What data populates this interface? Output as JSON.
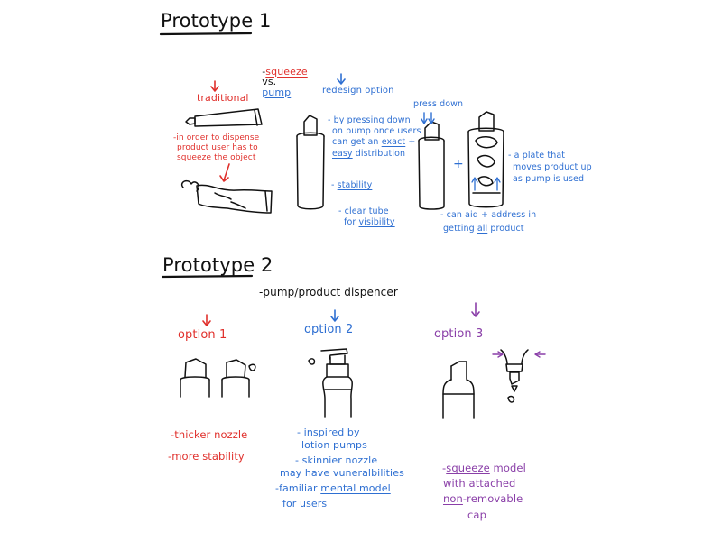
{
  "colors": {
    "ink": "#111111",
    "red": "#e0302c",
    "blue": "#2e6fd2",
    "purple": "#8a3fa8"
  },
  "prototype1": {
    "title": "Prototype 1",
    "topic_prefix": "-",
    "topic_squeeze": "squeeze",
    "topic_vs": "vs.",
    "topic_pump": "pump",
    "traditional": "traditional",
    "red_note_line1": "-in order to dispense",
    "red_note_line2": "product user has to",
    "red_note_line3": "squeeze the object",
    "redesign": "redesign option",
    "press_note_line1": "- by pressing down",
    "press_note_line2": "on pump once users",
    "press_note_line3a": "can get an",
    "press_note_exact": "exact",
    "press_note_line3b": " +",
    "press_note_easy": "easy",
    "press_note_line4b": " distribution",
    "stability_dash": "- ",
    "stability": "stability",
    "clear_line1": "- clear tube",
    "clear_line2a": "for ",
    "clear_visibility": "visibility",
    "press_down": "press down",
    "plus": "+",
    "plate_line1": "- a plate that",
    "plate_line2": "moves product up",
    "plate_line3": "as pump is used",
    "aid_line1": "- can aid + address in",
    "aid_line2a": "getting ",
    "aid_all": "all",
    "aid_line2b": " product"
  },
  "prototype2": {
    "title": "Prototype 2",
    "subtitle": "-pump/product dispencer",
    "option1": {
      "label": "option 1",
      "note1": "-thicker nozzle",
      "note2": "-more stability"
    },
    "option2": {
      "label": "option 2",
      "note1_line1": "- inspired by",
      "note1_line2": "lotion pumps",
      "note2_line1": "- skinnier nozzle",
      "note2_line2": "may have vuneralbilities",
      "note3_line1a": "-familiar ",
      "note3_mental": "mental model",
      "note3_line2": "for users"
    },
    "option3": {
      "label": "option 3",
      "line1_squeeze": "squeeze",
      "line1b": " model",
      "line2": "with attached",
      "line3_non": "non",
      "line3b": "-removable",
      "line4": "cap"
    }
  }
}
